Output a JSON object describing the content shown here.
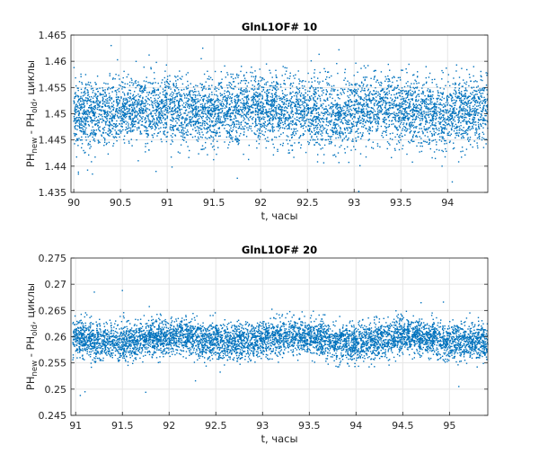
{
  "chart_data": [
    {
      "type": "scatter",
      "title": "GlnL1OF# 10",
      "xlabel": "t, часы",
      "ylabel_parts": [
        "PH",
        "new",
        " - PH",
        "old",
        ", циклы"
      ],
      "xlim": [
        89.97,
        94.43
      ],
      "ylim": [
        1.435,
        1.465
      ],
      "xticks": [
        "90",
        "90.5",
        "91",
        "91.5",
        "92",
        "92.5",
        "93",
        "93.5",
        "94"
      ],
      "xtick_values": [
        90,
        90.5,
        91,
        91.5,
        92,
        92.5,
        93,
        93.5,
        94
      ],
      "yticks": [
        "1.435",
        "1.44",
        "1.445",
        "1.45",
        "1.455",
        "1.46",
        "1.465"
      ],
      "ytick_values": [
        1.435,
        1.44,
        1.445,
        1.45,
        1.455,
        1.46,
        1.465
      ],
      "grid": true,
      "color": "#0072BD",
      "points_summary": {
        "count": 6000,
        "x_range": [
          90,
          94.43
        ],
        "mean_y": 1.4505,
        "std_y": 0.0032
      },
      "outliers": [
        [
          90.4,
          1.463
        ],
        [
          90.05,
          1.4385
        ],
        [
          90.2,
          1.4385
        ],
        [
          90.88,
          1.439
        ],
        [
          91.75,
          1.4377
        ],
        [
          93.05,
          1.4352
        ],
        [
          94.05,
          1.437
        ],
        [
          91.38,
          1.4625
        ]
      ]
    },
    {
      "type": "scatter",
      "title": "GlnL1OF# 20",
      "xlabel": "t, часы",
      "ylabel_parts": [
        "PH",
        "new",
        " - PH",
        "old",
        ", циклы"
      ],
      "xlim": [
        90.95,
        95.41
      ],
      "ylim": [
        0.245,
        0.275
      ],
      "xticks": [
        "91",
        "91.5",
        "92",
        "92.5",
        "93",
        "93.5",
        "94",
        "94.5",
        "95"
      ],
      "xtick_values": [
        91,
        91.5,
        92,
        92.5,
        93,
        93.5,
        94,
        94.5,
        95
      ],
      "yticks": [
        "0.245",
        "0.25",
        "0.255",
        "0.26",
        "0.265",
        "0.27",
        "0.275"
      ],
      "ytick_values": [
        0.245,
        0.25,
        0.255,
        0.26,
        0.265,
        0.27,
        0.275
      ],
      "grid": true,
      "color": "#0072BD",
      "points_summary": {
        "count": 6000,
        "x_range": [
          90.97,
          95.41
        ],
        "mean_y": 0.2595,
        "std_y": 0.0017
      },
      "outliers": [
        [
          91.05,
          0.2488
        ],
        [
          91.1,
          0.2495
        ],
        [
          91.75,
          0.2494
        ],
        [
          95.1,
          0.2505
        ],
        [
          91.5,
          0.2688
        ],
        [
          91.2,
          0.2685
        ]
      ]
    }
  ]
}
